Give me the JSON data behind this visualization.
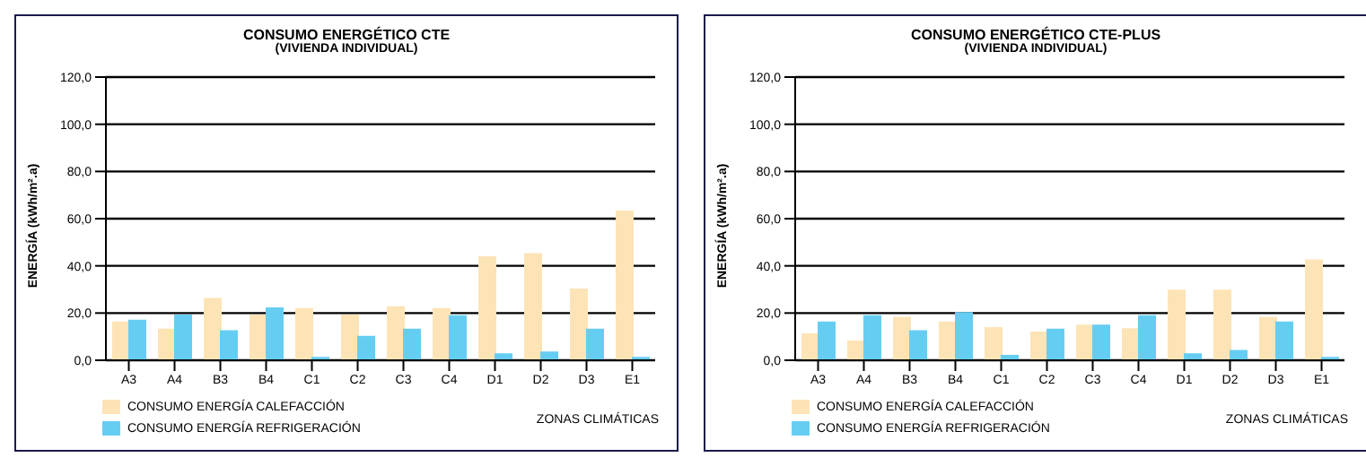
{
  "chart_data": [
    {
      "type": "bar",
      "title": "CONSUMO ENERGÉTICO CTE",
      "subtitle": "(VIVIENDA INDIVIDUAL)",
      "xlabel": "ZONAS CLIMÁTICAS",
      "ylabel": "ENERGÍA (kWh/m².a)",
      "categories": [
        "A3",
        "A4",
        "B3",
        "B4",
        "C1",
        "C2",
        "C3",
        "C4",
        "D1",
        "D2",
        "D3",
        "E1"
      ],
      "series": [
        {
          "name": "CONSUMO ENERGÍA CALEFACCIÓN",
          "color": "#fde4b6",
          "values": [
            16,
            13,
            26,
            19,
            21.7,
            19,
            22.5,
            21.7,
            43.7,
            45,
            30,
            63
          ]
        },
        {
          "name": "CONSUMO ENERGÍA REFRIGERACIÓN",
          "color": "#66cdf2",
          "values": [
            16.8,
            19,
            12.3,
            22,
            1,
            10,
            13,
            18.7,
            2.6,
            3.3,
            13,
            1
          ]
        }
      ],
      "ylim": [
        0,
        120
      ],
      "yticks": [
        {
          "value": 0,
          "label": "0,0"
        },
        {
          "value": 20,
          "label": "20,0"
        },
        {
          "value": 40,
          "label": "40,0"
        },
        {
          "value": 60,
          "label": "60,0"
        },
        {
          "value": 80,
          "label": "80,0"
        },
        {
          "value": 100,
          "label": "100,0"
        },
        {
          "value": 120,
          "label": "120,0"
        }
      ],
      "grid": "y",
      "legend": "bottom left"
    },
    {
      "type": "bar",
      "title": "CONSUMO ENERGÉTICO CTE-PLUS",
      "subtitle": "(VIVIENDA INDIVIDUAL)",
      "xlabel": "ZONAS CLIMÁTICAS",
      "ylabel": "ENERGÍA (kWh/m².a)",
      "categories": [
        "A3",
        "A4",
        "B3",
        "B4",
        "C1",
        "C2",
        "C3",
        "C4",
        "D1",
        "D2",
        "D3",
        "E1"
      ],
      "series": [
        {
          "name": "CONSUMO ENERGÍA CALEFACCIÓN",
          "color": "#fde4b6",
          "values": [
            11,
            8,
            18,
            16,
            13.7,
            11.8,
            14.7,
            13.2,
            29.5,
            29.5,
            18,
            42.3
          ]
        },
        {
          "name": "CONSUMO ENERGÍA REFRIGERACIÓN",
          "color": "#66cdf2",
          "values": [
            16,
            18.7,
            12.3,
            20,
            1.9,
            13,
            14.7,
            18.7,
            2.6,
            4,
            16,
            1
          ]
        }
      ],
      "ylim": [
        0,
        120
      ],
      "yticks": [
        {
          "value": 0,
          "label": "0,0"
        },
        {
          "value": 20,
          "label": "20,0"
        },
        {
          "value": 40,
          "label": "40,0"
        },
        {
          "value": 60,
          "label": "60,0"
        },
        {
          "value": 80,
          "label": "80,0"
        },
        {
          "value": 100,
          "label": "100,0"
        },
        {
          "value": 120,
          "label": "120,0"
        }
      ],
      "grid": "y",
      "legend": "bottom left"
    }
  ]
}
